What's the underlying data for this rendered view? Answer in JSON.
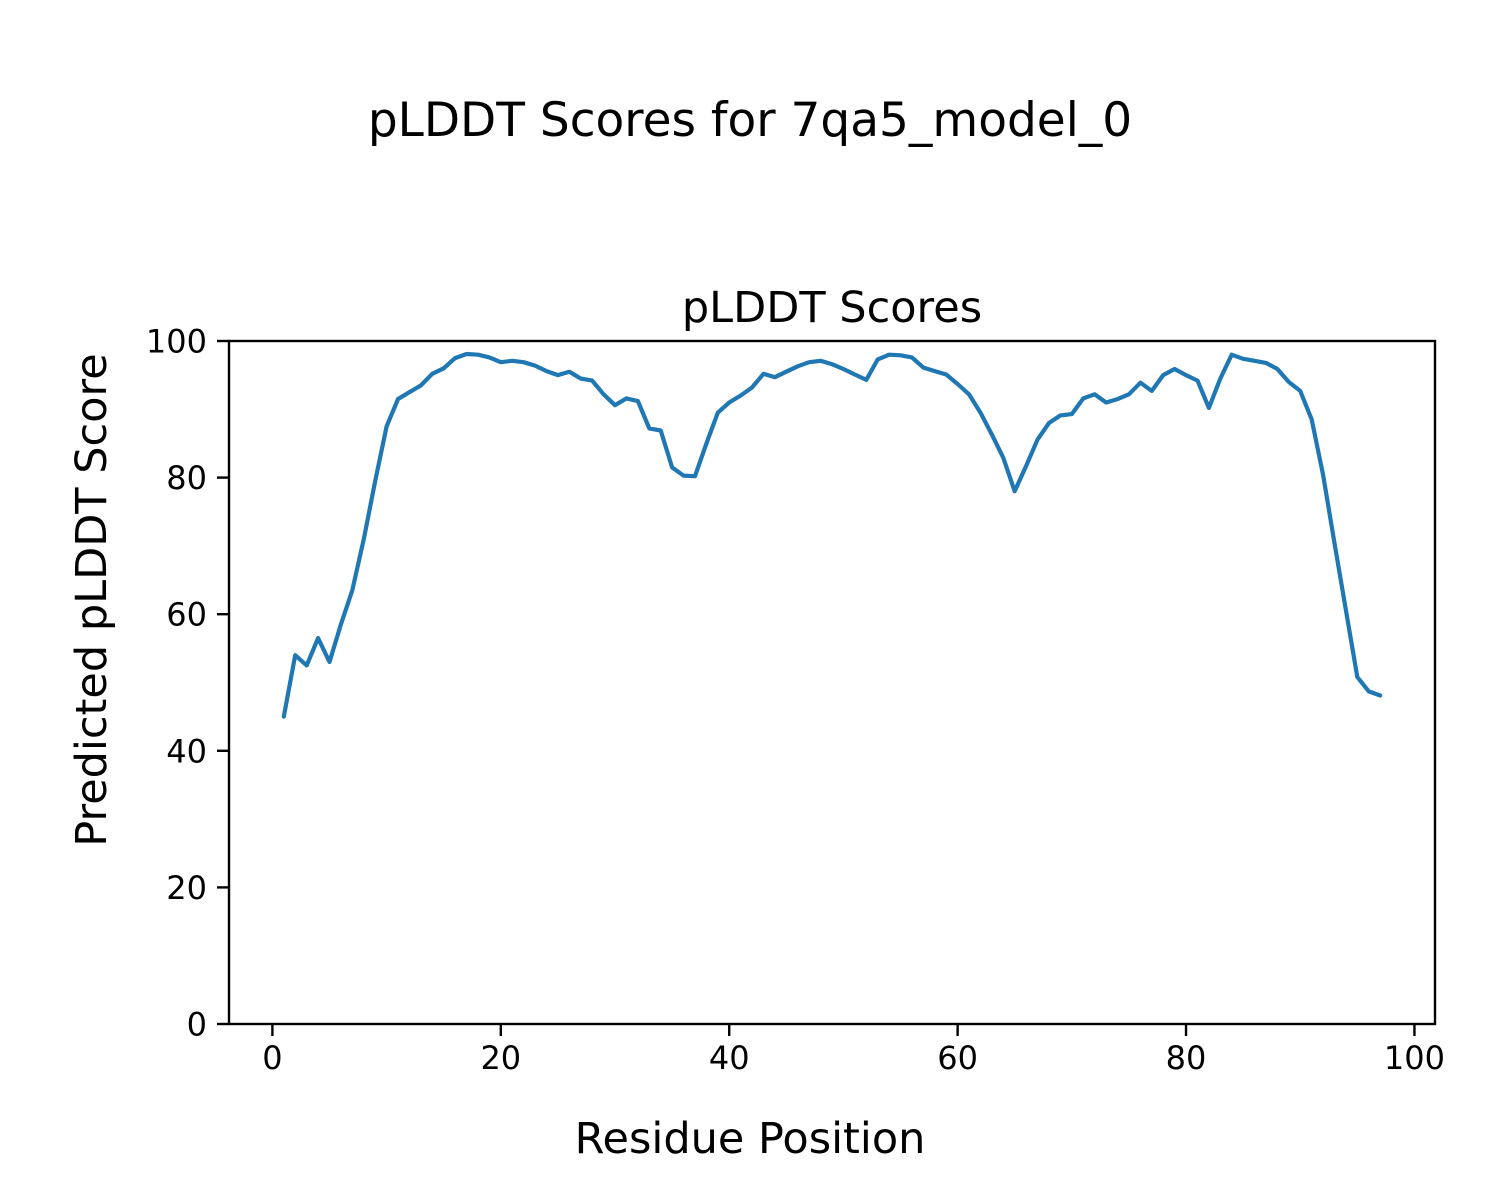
{
  "figure": {
    "suptitle": "pLDDT Scores for 7qa5_model_0",
    "background_color": "#ffffff",
    "text_color": "#000000"
  },
  "chart_data": {
    "type": "line",
    "title": "pLDDT Scores",
    "xlabel": "Residue Position",
    "ylabel": "Predicted pLDDT Score",
    "xlim": [
      -3.8,
      101.8
    ],
    "ylim": [
      0,
      100
    ],
    "xticks": [
      0,
      20,
      40,
      60,
      80,
      100
    ],
    "yticks": [
      0,
      20,
      40,
      60,
      80,
      100
    ],
    "grid": false,
    "legend": "none",
    "line_color": "#1f77b4",
    "line_width": 4.2,
    "series": [
      {
        "name": "pLDDT",
        "x": [
          1,
          2,
          3,
          4,
          5,
          6,
          7,
          8,
          9,
          10,
          11,
          12,
          13,
          14,
          15,
          16,
          17,
          18,
          19,
          20,
          21,
          22,
          23,
          24,
          25,
          26,
          27,
          28,
          29,
          30,
          31,
          32,
          33,
          34,
          35,
          36,
          37,
          38,
          39,
          40,
          41,
          42,
          43,
          44,
          45,
          46,
          47,
          48,
          49,
          50,
          51,
          52,
          53,
          54,
          55,
          56,
          57,
          58,
          59,
          60,
          61,
          62,
          63,
          64,
          65,
          66,
          67,
          68,
          69,
          70,
          71,
          72,
          73,
          74,
          75,
          76,
          77,
          78,
          79,
          80,
          81,
          82,
          83,
          84,
          85,
          86,
          87,
          88,
          89,
          90,
          91,
          92,
          93,
          94,
          95,
          96,
          97
        ],
        "values": [
          45.0,
          54.0,
          52.5,
          56.5,
          53.0,
          58.5,
          63.5,
          71.0,
          79.5,
          87.5,
          91.5,
          92.5,
          93.5,
          95.2,
          96.0,
          97.5,
          98.1,
          98.0,
          97.6,
          96.9,
          97.1,
          96.9,
          96.4,
          95.6,
          95.0,
          95.5,
          94.5,
          94.2,
          92.2,
          90.6,
          91.6,
          91.2,
          87.2,
          86.9,
          81.5,
          80.3,
          80.2,
          85.0,
          89.5,
          91.0,
          92.0,
          93.2,
          95.2,
          94.7,
          95.5,
          96.3,
          96.9,
          97.1,
          96.6,
          95.9,
          95.1,
          94.3,
          97.3,
          98.0,
          97.9,
          97.6,
          96.1,
          95.6,
          95.1,
          93.7,
          92.2,
          89.5,
          86.3,
          82.9,
          78.0,
          81.7,
          85.6,
          88.0,
          89.1,
          89.3,
          91.6,
          92.2,
          91.0,
          91.5,
          92.2,
          93.9,
          92.7,
          95.0,
          95.9,
          95.0,
          94.2,
          90.2,
          94.5,
          98.0,
          97.4,
          97.1,
          96.8,
          95.9,
          94.0,
          92.7,
          88.5,
          80.4,
          70.4,
          60.6,
          50.8,
          48.7,
          48.1
        ]
      }
    ]
  }
}
